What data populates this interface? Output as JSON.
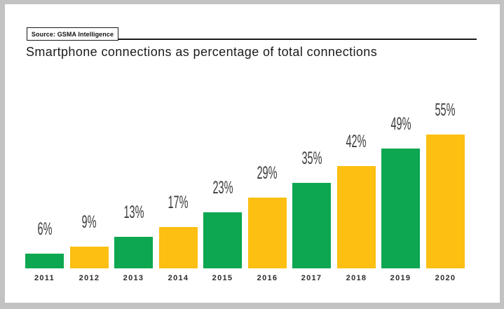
{
  "frame": {
    "background_color": "#c2c2c2",
    "page_background_color": "#ffffff"
  },
  "source_badge": {
    "label": "Source: GSMA Intelligence"
  },
  "title": "Smartphone connections as percentage of total connections",
  "chart_data": {
    "type": "bar",
    "title": "Smartphone connections as percentage of total connections",
    "source": "Source: GSMA Intelligence",
    "categories": [
      "2011",
      "2012",
      "2013",
      "2014",
      "2015",
      "2016",
      "2017",
      "2018",
      "2019",
      "2020"
    ],
    "values": [
      6,
      9,
      13,
      17,
      23,
      29,
      35,
      42,
      49,
      55
    ],
    "value_labels": [
      "6%",
      "9%",
      "13%",
      "17%",
      "23%",
      "29%",
      "35%",
      "42%",
      "49%",
      "55%"
    ],
    "bar_colors": [
      "#0ca750",
      "#fcbf12",
      "#0ca750",
      "#fcbf12",
      "#0ca750",
      "#fcbf12",
      "#0ca750",
      "#fcbf12",
      "#0ca750",
      "#fcbf12"
    ],
    "palette": {
      "green": "#0ca750",
      "yellow": "#fcbf12"
    },
    "xlabel": "",
    "ylabel": "",
    "ylim": [
      0,
      60
    ],
    "grid": false,
    "legend": null,
    "value_label_color": "#3a3a3a",
    "axis_tick_color": "#2b2b2b"
  }
}
